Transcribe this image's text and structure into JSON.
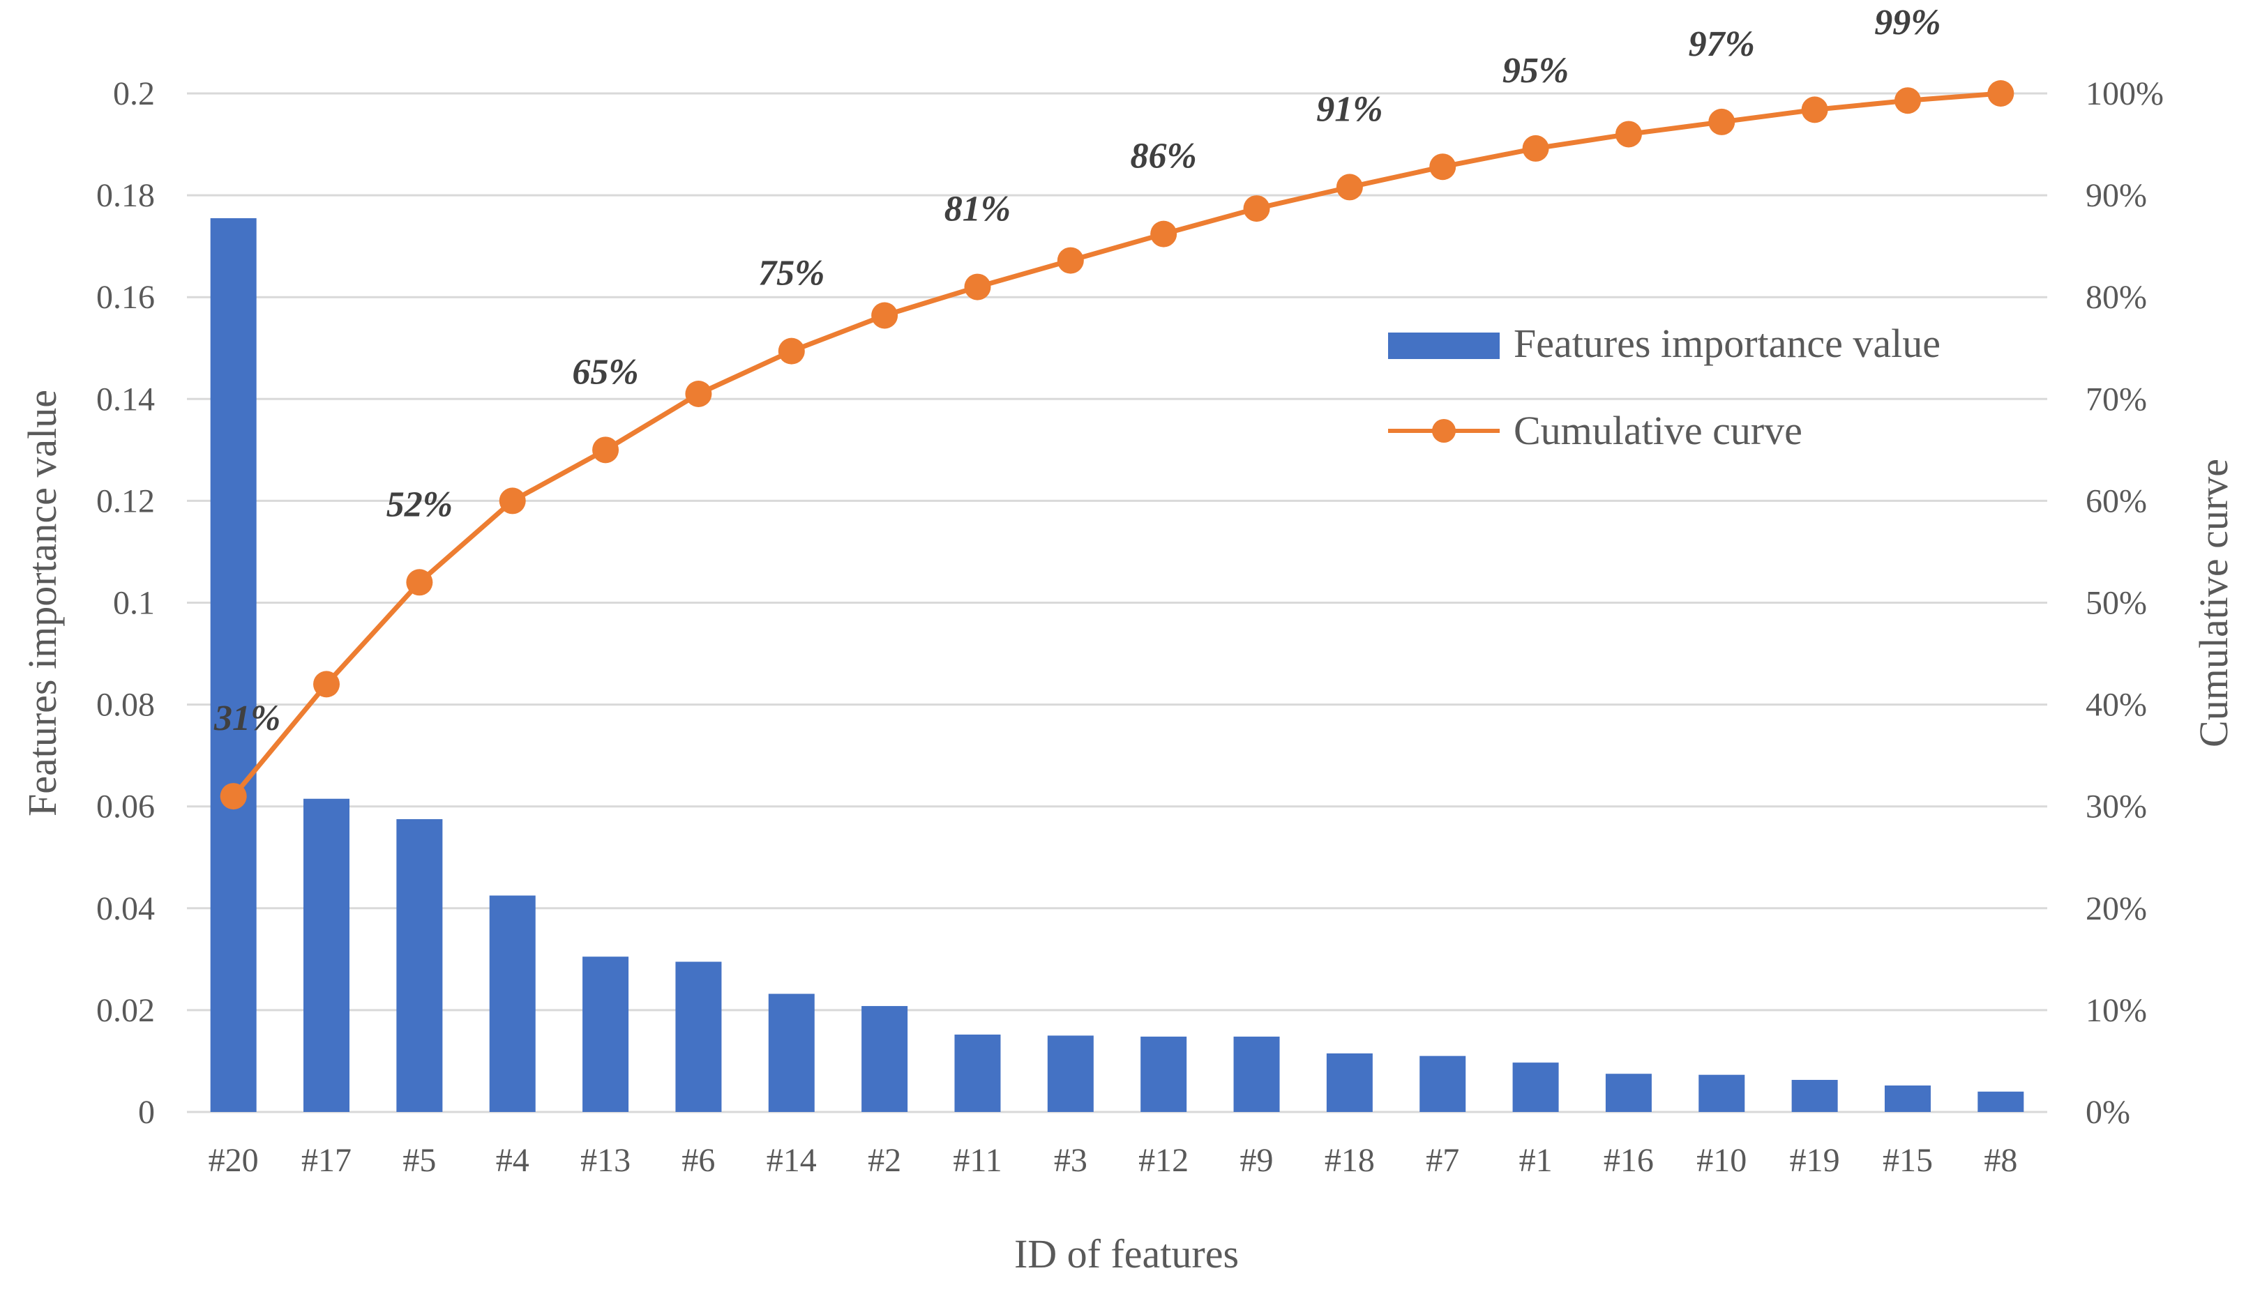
{
  "chart_data": {
    "type": "bar",
    "categories": [
      "#20",
      "#17",
      "#5",
      "#4",
      "#13",
      "#6",
      "#14",
      "#2",
      "#11",
      "#3",
      "#12",
      "#9",
      "#18",
      "#7",
      "#1",
      "#16",
      "#10",
      "#19",
      "#15",
      "#8"
    ],
    "series": [
      {
        "name": "Features importance value",
        "type": "bar",
        "axis": "left",
        "color": "#4472C4",
        "values": [
          0.1755,
          0.0615,
          0.0575,
          0.0425,
          0.0305,
          0.0295,
          0.0232,
          0.0208,
          0.0152,
          0.015,
          0.0148,
          0.0148,
          0.0115,
          0.011,
          0.0097,
          0.0075,
          0.0073,
          0.0063,
          0.0052,
          0.004
        ]
      },
      {
        "name": "Cumulative curve",
        "type": "line",
        "axis": "right",
        "color": "#ED7D31",
        "values": [
          0.31,
          0.42,
          0.52,
          0.6,
          0.65,
          0.705,
          0.747,
          0.782,
          0.81,
          0.836,
          0.862,
          0.887,
          0.908,
          0.928,
          0.946,
          0.96,
          0.972,
          0.984,
          0.993,
          1.0
        ]
      }
    ],
    "data_labels": [
      {
        "index": 0,
        "text": "31%"
      },
      {
        "index": 2,
        "text": "52%"
      },
      {
        "index": 4,
        "text": "65%"
      },
      {
        "index": 6,
        "text": "75%"
      },
      {
        "index": 8,
        "text": "81%"
      },
      {
        "index": 10,
        "text": "86%"
      },
      {
        "index": 12,
        "text": "91%"
      },
      {
        "index": 14,
        "text": "95%"
      },
      {
        "index": 16,
        "text": "97%"
      },
      {
        "index": 18,
        "text": "99%"
      }
    ],
    "title": "",
    "xlabel": "ID of features",
    "ylabel": "Features importance value",
    "y2label": "Cumulative curve",
    "ylim": [
      0,
      0.2
    ],
    "y2lim": [
      0,
      1
    ],
    "yticks": [
      "0",
      "0.02",
      "0.04",
      "0.06",
      "0.08",
      "0.1",
      "0.12",
      "0.14",
      "0.16",
      "0.18",
      "0.2"
    ],
    "y2ticks": [
      "0%",
      "10%",
      "20%",
      "30%",
      "40%",
      "50%",
      "60%",
      "70%",
      "80%",
      "90%",
      "100%"
    ],
    "grid": true,
    "legend": {
      "position": "right-upper",
      "entries": [
        "Features importance value",
        "Cumulative curve"
      ]
    },
    "gridline_color": "#D9D9D9"
  }
}
